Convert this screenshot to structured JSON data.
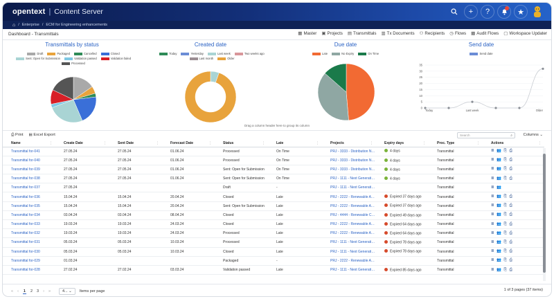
{
  "header": {
    "brand": "opentext",
    "app_name": "Content Server",
    "icons": [
      "search-icon",
      "plus-icon",
      "help-icon",
      "bell-icon",
      "star-icon",
      "avatar"
    ]
  },
  "breadcrumb": {
    "items": [
      "Enterprise",
      "ECM for Engineering enhancements"
    ]
  },
  "toolbar": {
    "title": "Dashboard - Transmittals",
    "actions": [
      {
        "icon": "master-icon",
        "label": "Master"
      },
      {
        "icon": "projects-icon",
        "label": "Projects"
      },
      {
        "icon": "transmittals-icon",
        "label": "Transmittals"
      },
      {
        "icon": "tx-documents-icon",
        "label": "Tx Documents"
      },
      {
        "icon": "recipients-icon",
        "label": "Recipients"
      },
      {
        "icon": "flows-icon",
        "label": "Flows"
      },
      {
        "icon": "audit-flows-icon",
        "label": "Audit Flows"
      },
      {
        "icon": "workspace-updater-icon",
        "label": "Workspace Updater"
      }
    ]
  },
  "chart_data": [
    {
      "type": "pie",
      "title": "Transmittals by status",
      "categories": [
        "Draft",
        "Packaged",
        "Cancelled",
        "Closed",
        "Sent: Open for Submission",
        "Validation passed",
        "Validation failed",
        "Processed"
      ],
      "colors": [
        "#a9a9a9",
        "#e8a33c",
        "#2e8b57",
        "#3a6fd8",
        "#a9d4d4",
        "#7ec8e3",
        "#d81f26",
        "#555555"
      ],
      "values": [
        6,
        2,
        1,
        8,
        10,
        1,
        4,
        7
      ]
    },
    {
      "type": "pie",
      "title": "Created date",
      "categories": [
        "Today",
        "Yesterday",
        "Last week",
        "Two weeks ago",
        "Last month",
        "Older"
      ],
      "colors": [
        "#2e8b57",
        "#6b8dd6",
        "#a9d4d4",
        "#d8969a",
        "#9b8e93",
        "#e8a33c"
      ],
      "values": [
        0,
        0,
        2,
        0,
        0,
        35
      ],
      "donut": true
    },
    {
      "type": "pie",
      "title": "Due date",
      "categories": [
        "Late",
        "No Expiry",
        "On Time"
      ],
      "colors": [
        "#f26a33",
        "#8fa7a3",
        "#1a7a4a"
      ],
      "values": [
        18,
        14,
        5
      ]
    },
    {
      "type": "line",
      "title": "Send date",
      "series": [
        {
          "name": "Send date",
          "values": [
            0,
            0,
            5,
            0,
            0,
            32
          ]
        }
      ],
      "x_tick_labels": [
        "Today",
        "Last week",
        "Older"
      ],
      "ylim": [
        0,
        35
      ],
      "yticks": [
        0,
        5,
        10,
        15,
        20,
        25,
        30,
        35
      ]
    }
  ],
  "group_hint": "Drag a column header here to group its column",
  "grid": {
    "print_label": "Print",
    "export_label": "Excel Export",
    "search_placeholder": "Search",
    "columns_label": "Columns",
    "headers": [
      "Name",
      "Create Date",
      "Sent Date",
      "Forecast Date",
      "Status",
      "Late",
      "Projects",
      "Expiry days",
      "Proc. Type",
      "Actions"
    ],
    "rows": [
      {
        "name": "Transmittal for-041",
        "create": "27.05.24",
        "sent": "27.05.24",
        "forecast": "01.06.24",
        "status": "Processed",
        "late": "On Time",
        "project": "PRJ - 3333 - Distribution Net...",
        "expiry": "4 days",
        "expiry_color": "green",
        "proc": "Transmittal",
        "actions": "≣ 👥 ⎘ ⎙"
      },
      {
        "name": "Transmittal for-040",
        "create": "27.05.24",
        "sent": "27.05.24",
        "forecast": "01.06.24",
        "status": "Processed",
        "late": "On Time",
        "project": "PRJ - 3333 - Distribution Net...",
        "expiry": "4 days",
        "expiry_color": "green",
        "proc": "Transmittal",
        "actions": "≣ 👥 ⎘ ⎙"
      },
      {
        "name": "Transmittal for-039",
        "create": "27.05.24",
        "sent": "27.05.24",
        "forecast": "01.06.24",
        "status": "Sent: Open for Submission",
        "late": "On Time",
        "project": "PRJ - 3333 - Distribution Net...",
        "expiry": "4 days",
        "expiry_color": "green",
        "proc": "Transmittal",
        "actions": "≣ 👥 ⎘ ⎙"
      },
      {
        "name": "Transmittal for-038",
        "create": "27.05.24",
        "sent": "27.05.24",
        "forecast": "01.06.24",
        "status": "Sent: Open for Submission",
        "late": "On Time",
        "project": "PRJ - 1111 - Next Generatio...",
        "expiry": "4 days",
        "expiry_color": "green",
        "proc": "Transmittal",
        "actions": "≣ 👥 ⎘ ⎙"
      },
      {
        "name": "Transmittal for-037",
        "create": "27.05.24",
        "sent": "",
        "forecast": "",
        "status": "Draft",
        "late": "-",
        "project": "PRJ - 1111 - Next Generatio...",
        "expiry": "",
        "expiry_color": "",
        "proc": "Transmittal",
        "actions": "≣ 👥"
      },
      {
        "name": "Transmittal for-036",
        "create": "15.04.24",
        "sent": "15.04.24",
        "forecast": "20.04.24",
        "status": "Closed",
        "late": "Late",
        "project": "PRJ - 2222 - Renewable Awa...",
        "expiry": "Expired 37 days ago",
        "expiry_color": "red",
        "proc": "Transmittal",
        "actions": "≣ 👥 ⎘ ⎙"
      },
      {
        "name": "Transmittal for-035",
        "create": "15.04.24",
        "sent": "15.04.24",
        "forecast": "20.04.24",
        "status": "Sent: Open for Submission",
        "late": "Late",
        "project": "PRJ - 2222 - Renewable Awa...",
        "expiry": "Expired 37 days ago",
        "expiry_color": "red",
        "proc": "Transmittal",
        "actions": "≣ 👥 ⎘ ⎙"
      },
      {
        "name": "Transmittal for-034",
        "create": "03.04.24",
        "sent": "03.04.24",
        "forecast": "08.04.24",
        "status": "Closed",
        "late": "Late",
        "project": "PRJ - 4444 - Renewable Che...",
        "expiry": "Expired 49 days ago",
        "expiry_color": "red",
        "proc": "Transmittal",
        "actions": "≣ 👥 ⎘ ⎙"
      },
      {
        "name": "Transmittal for-033",
        "create": "19.03.24",
        "sent": "19.03.24",
        "forecast": "24.03.24",
        "status": "Closed",
        "late": "Late",
        "project": "PRJ - 2222 - Renewable Awa...",
        "expiry": "Expired 64 days ago",
        "expiry_color": "red",
        "proc": "Transmittal",
        "actions": "≣ 👥 ⎘ ⎙"
      },
      {
        "name": "Transmittal for-032",
        "create": "19.03.24",
        "sent": "19.03.24",
        "forecast": "24.03.24",
        "status": "Processed",
        "late": "Late",
        "project": "PRJ - 2222 - Renewable Awa...",
        "expiry": "Expired 64 days ago",
        "expiry_color": "red",
        "proc": "Transmittal",
        "actions": "≣ 👥 ⎘ ⎙"
      },
      {
        "name": "Transmittal for-031",
        "create": "05.03.24",
        "sent": "05.03.24",
        "forecast": "10.03.24",
        "status": "Processed",
        "late": "Late",
        "project": "PRJ - 1111 - Next Generatio...",
        "expiry": "Expired 78 days ago",
        "expiry_color": "red",
        "proc": "Transmittal",
        "actions": "≣ 👥 ⎘ ⎙"
      },
      {
        "name": "Transmittal for-030",
        "create": "05.03.24",
        "sent": "05.03.24",
        "forecast": "10.03.24",
        "status": "Closed",
        "late": "Late",
        "project": "PRJ - 1111 - Next Generatio...",
        "expiry": "Expired 78 days ago",
        "expiry_color": "red",
        "proc": "Transmittal",
        "actions": "≣ 👥 ⎘ ⎙"
      },
      {
        "name": "Transmittal for-029",
        "create": "01.03.24",
        "sent": "",
        "forecast": "",
        "status": "Packaged",
        "late": "-",
        "project": "PRJ - 2222 - Renewable Awa...",
        "expiry": "",
        "expiry_color": "",
        "proc": "Transmittal",
        "actions": "≣ 👥 ⎘ ⎙"
      },
      {
        "name": "Transmittal for-028",
        "create": "27.02.24",
        "sent": "27.02.24",
        "forecast": "03.03.24",
        "status": "Validation passed",
        "late": "Late",
        "project": "PRJ - 1111 - Next Generatio...",
        "expiry": "Expired 85 days ago",
        "expiry_color": "red",
        "proc": "Transmittal",
        "actions": "≣ 👥 ⎘ ⎙"
      }
    ]
  },
  "pagination": {
    "pages": [
      "1",
      "2",
      "3"
    ],
    "per_page": "4...",
    "per_page_label": "Items per page",
    "summary": "1 of 3 pages (37 items)"
  }
}
